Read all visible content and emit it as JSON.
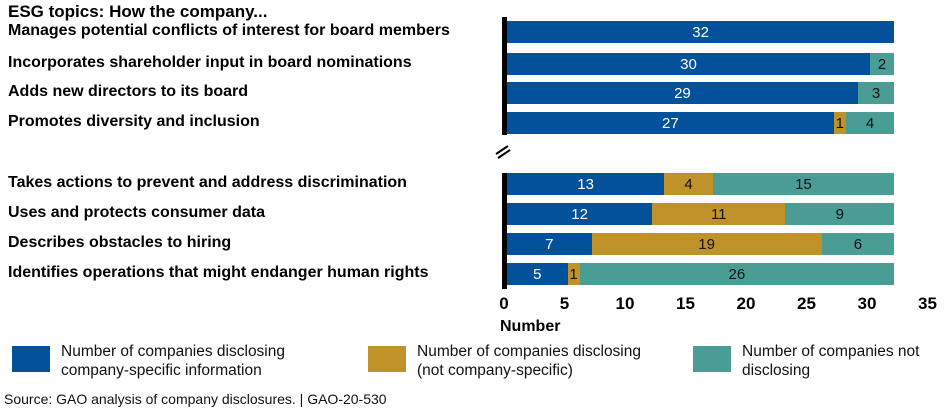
{
  "chart_data": {
    "type": "bar",
    "orientation": "horizontal",
    "stacked": true,
    "title": "ESG topics: How the company...",
    "xlabel": "Number",
    "xlim": [
      0,
      35
    ],
    "xticks": [
      "0",
      "5",
      "10",
      "15",
      "20",
      "25",
      "30",
      "35"
    ],
    "axis_break": true,
    "categories": [
      "Manages potential conflicts of interest for board members",
      "Incorporates shareholder input in board nominations",
      "Adds new directors to its board",
      "Promotes diversity and inclusion",
      "Takes actions to prevent and address discrimination",
      "Uses and protects consumer data",
      "Describes obstacles to hiring",
      "Identifies operations that might endanger human rights"
    ],
    "series": [
      {
        "name": "Number of companies disclosing company-specific information",
        "color": "#03519a",
        "values": [
          32,
          30,
          29,
          27,
          13,
          12,
          7,
          5
        ]
      },
      {
        "name": "Number of companies disclosing (not company-specific)",
        "color": "#c0922a",
        "values": [
          0,
          0,
          0,
          1,
          4,
          11,
          19,
          1
        ]
      },
      {
        "name": "Number of companies not disclosing",
        "color": "#4a9d94",
        "values": [
          0,
          2,
          3,
          4,
          15,
          9,
          6,
          26
        ]
      }
    ],
    "legend": {
      "position": "bottom",
      "lines": [
        [
          "Number of companies disclosing",
          "company-specific information"
        ],
        [
          "Number of companies disclosing",
          "(not company-specific)"
        ],
        [
          "Number of companies not",
          "disclosing"
        ]
      ]
    },
    "grid": false
  },
  "source": "Source: GAO analysis of company disclosures.  |  GAO-20-530"
}
